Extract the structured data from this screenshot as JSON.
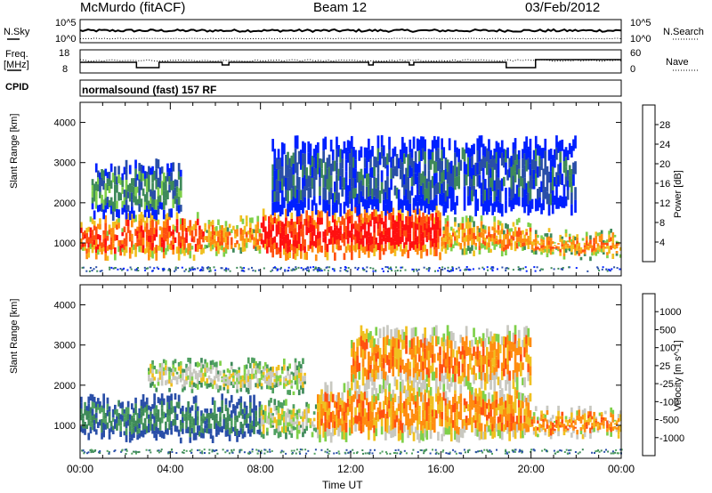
{
  "header": {
    "station": "McMurdo (fitACF)",
    "beam": "Beam 12",
    "date": "03/Feb/2012"
  },
  "top_panels": {
    "nsky_label": "N.Sky",
    "nsky_ticks": [
      "10^5",
      "10^0"
    ],
    "nsearch_label": "N.Search",
    "nsearch_ticks": [
      "10^5",
      "10^0"
    ],
    "freq_label_line1": "Freq.",
    "freq_label_line2": "[MHz]",
    "freq_ticks": [
      "18",
      "8"
    ],
    "nave_label": "Nave",
    "nave_ticks": [
      "60",
      "0"
    ],
    "cpid_label": "CPID",
    "cpid_value": "normalsound (fast) 157 RF"
  },
  "colors": {
    "power_scale": [
      "#0020ff",
      "#2a4fa8",
      "#3f8a5a",
      "#7fd04a",
      "#f0c020",
      "#ff8c10",
      "#ff5010",
      "#ff1010"
    ],
    "velocity_scale": [
      "#2a4fa8",
      "#3f8a5a",
      "#4fa060",
      "#7fd04a",
      "#c8c8c0",
      "#f0c020",
      "#ff8c10",
      "#ff5010",
      "#ff1010"
    ]
  },
  "chart_data": [
    {
      "type": "heatmap",
      "name": "power",
      "ylabel": "Slant Range [km]",
      "ylim": [
        180,
        4500
      ],
      "yticks": [
        "1000",
        "2000",
        "3000",
        "4000"
      ],
      "xlim_hours": [
        0,
        24
      ],
      "colorbar": {
        "label": "Power [dB]",
        "ticks": [
          "4",
          "8",
          "12",
          "16",
          "20",
          "24",
          "28"
        ]
      },
      "bands": [
        {
          "start_h": 0.0,
          "end_h": 2.0,
          "range_low": 700,
          "range_high": 1500,
          "level": 6
        },
        {
          "start_h": 2.0,
          "end_h": 5.5,
          "range_low": 700,
          "range_high": 1600,
          "level": 6
        },
        {
          "start_h": 5.5,
          "end_h": 8.0,
          "range_low": 800,
          "range_high": 1500,
          "level": 5
        },
        {
          "start_h": 8.0,
          "end_h": 12.0,
          "range_low": 700,
          "range_high": 1700,
          "level": 7
        },
        {
          "start_h": 12.0,
          "end_h": 16.0,
          "range_low": 700,
          "range_high": 1800,
          "level": 7
        },
        {
          "start_h": 16.0,
          "end_h": 20.0,
          "range_low": 800,
          "range_high": 1500,
          "level": 5
        },
        {
          "start_h": 20.0,
          "end_h": 24.0,
          "range_low": 700,
          "range_high": 1200,
          "level": 5
        },
        {
          "start_h": 0.5,
          "end_h": 4.5,
          "range_low": 1700,
          "range_high": 2900,
          "level": 2
        },
        {
          "start_h": 8.5,
          "end_h": 22.0,
          "range_low": 1800,
          "range_high": 3500,
          "level": 1
        }
      ]
    },
    {
      "type": "heatmap",
      "name": "velocity",
      "ylabel": "Slant Range [km]",
      "ylim": [
        180,
        4500
      ],
      "yticks": [
        "1000",
        "2000",
        "3000",
        "4000"
      ],
      "xlim_hours": [
        0,
        24
      ],
      "xticks": [
        "00:00",
        "04:00",
        "08:00",
        "12:00",
        "16:00",
        "20:00",
        "00:00"
      ],
      "xlabel": "Time UT",
      "colorbar": {
        "label": "Velocity [m s^-1]",
        "ticks": [
          "1000",
          "500",
          "100",
          "25",
          "-25",
          "-100",
          "-500",
          "-1000"
        ]
      },
      "bands": [
        {
          "start_h": 0.0,
          "end_h": 8.0,
          "range_low": 700,
          "range_high": 1600,
          "level": 1
        },
        {
          "start_h": 8.0,
          "end_h": 10.5,
          "range_low": 800,
          "range_high": 1500,
          "level": 4
        },
        {
          "start_h": 10.5,
          "end_h": 20.0,
          "range_low": 700,
          "range_high": 1900,
          "level": 6
        },
        {
          "start_h": 20.0,
          "end_h": 24.0,
          "range_low": 800,
          "range_high": 1300,
          "level": 6
        },
        {
          "start_h": 3.0,
          "end_h": 10.0,
          "range_low": 1900,
          "range_high": 2500,
          "level": 4
        },
        {
          "start_h": 12.0,
          "end_h": 20.0,
          "range_low": 2000,
          "range_high": 3300,
          "level": 6
        }
      ]
    }
  ]
}
